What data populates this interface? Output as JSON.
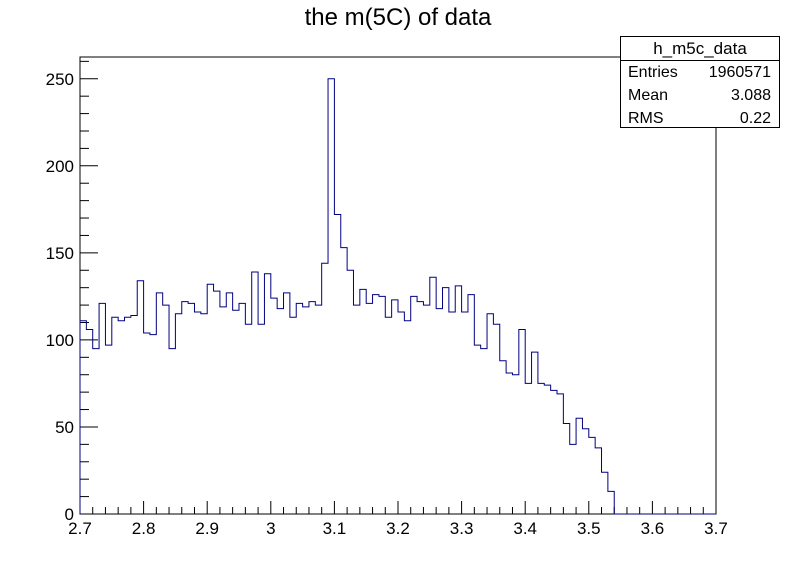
{
  "title": "the m(5C) of data",
  "stats_box": {
    "name": "h_m5c_data",
    "rows": [
      {
        "label": "Entries",
        "value": "1960571"
      },
      {
        "label": "Mean",
        "value": "3.088"
      },
      {
        "label": "RMS",
        "value": "0.22"
      }
    ]
  },
  "chart_data": {
    "type": "histogram",
    "title": "the m(5C) of data",
    "xlabel": "",
    "ylabel": "",
    "xlim": [
      2.7,
      3.7
    ],
    "ylim": [
      0,
      262.5
    ],
    "bin_width": 0.01,
    "x_ticks": [
      "2.7",
      "2.8",
      "2.9",
      "3",
      "3.1",
      "3.2",
      "3.3",
      "3.4",
      "3.5",
      "3.6",
      "3.7"
    ],
    "y_ticks": [
      "0",
      "50",
      "100",
      "150",
      "200",
      "250"
    ],
    "grid": false,
    "line_color": "#000080",
    "bin_edges_start": 2.7,
    "values": [
      111,
      106,
      95,
      121,
      97,
      113,
      111,
      113,
      114,
      134,
      104,
      103,
      127,
      120,
      95,
      115,
      122,
      121,
      116,
      115,
      132,
      128,
      119,
      127,
      117,
      121,
      109,
      139,
      109,
      138,
      124,
      118,
      127,
      113,
      121,
      119,
      122,
      120,
      144,
      250,
      172,
      153,
      140,
      120,
      129,
      121,
      126,
      125,
      113,
      123,
      116,
      111,
      125,
      122,
      120,
      136,
      118,
      130,
      116,
      131,
      116,
      126,
      97,
      95,
      115,
      109,
      88,
      81,
      80,
      106,
      75,
      93,
      75,
      74,
      71,
      69,
      52,
      40,
      55,
      49,
      44,
      38,
      24,
      13,
      0,
      0,
      0,
      0,
      0,
      0,
      0,
      0,
      0,
      0,
      0,
      0,
      0,
      0,
      0,
      0
    ]
  }
}
